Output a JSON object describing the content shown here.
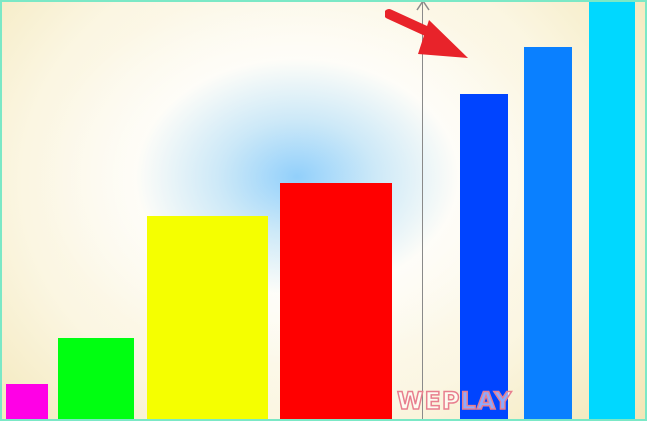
{
  "watermark": {
    "text": "WEPLAY"
  },
  "colors": {
    "border": "#7be8c6",
    "arrow": "#e8232a",
    "divider": "#8a8a8a"
  },
  "icons": {
    "arrow": "red-arrow-pointing-down-right",
    "cursor": "caret-cursor"
  },
  "bars": [
    {
      "name": "magenta",
      "color": "#ff00e6"
    },
    {
      "name": "green",
      "color": "#00ff11"
    },
    {
      "name": "yellow",
      "color": "#f5ff00"
    },
    {
      "name": "red",
      "color": "#ff0000"
    },
    {
      "name": "blue",
      "color": "#0044ff"
    },
    {
      "name": "azure",
      "color": "#0a80ff"
    },
    {
      "name": "cyan",
      "color": "#00d8ff"
    }
  ]
}
